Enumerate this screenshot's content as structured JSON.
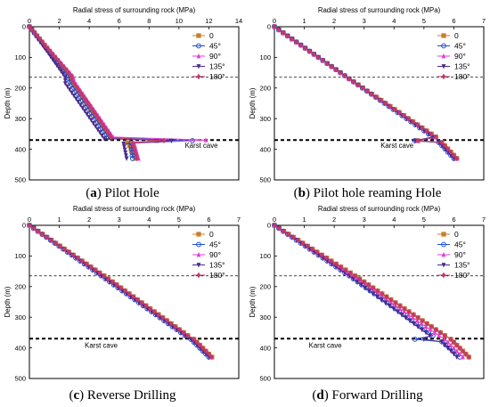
{
  "captions": [
    {
      "label": "a",
      "text": "Pilot Hole"
    },
    {
      "label": "b",
      "text": "Pilot hole reaming Hole"
    },
    {
      "label": "c",
      "text": "Reverse Drilling"
    },
    {
      "label": "d",
      "text": "Forward Drilling"
    }
  ],
  "series_styles": [
    {
      "name": "0",
      "color": "#c87f2a",
      "marker": "square"
    },
    {
      "name": "45°",
      "color": "#1f4fd6",
      "marker": "circle"
    },
    {
      "name": "90°",
      "color": "#e23fd6",
      "marker": "triangle-up"
    },
    {
      "name": "135°",
      "color": "#4a2b8c",
      "marker": "triangle-down"
    },
    {
      "name": "180°",
      "color": "#c13a6a",
      "marker": "diamond"
    }
  ],
  "chart_data": [
    {
      "id": "a",
      "type": "line",
      "xlabel": "Radial stress of surrounding rock (MPa)",
      "ylabel": "Depth (m)",
      "xlim": [
        0,
        14
      ],
      "xticks": [
        0,
        2,
        4,
        6,
        8,
        10,
        12,
        14
      ],
      "ylim": [
        0,
        500
      ],
      "yticks": [
        0,
        100,
        200,
        300,
        400,
        500
      ],
      "y_inverted": true,
      "x_axis_position": "top",
      "reference_lines": [
        {
          "depth": 165,
          "style": "thin-dashed"
        },
        {
          "depth": 370,
          "style": "thick-dashed"
        }
      ],
      "annotations": [
        {
          "text": "Karst cave",
          "x": 11.5,
          "y": 395
        }
      ],
      "series": [
        {
          "name": "0",
          "points": [
            [
              0,
              0
            ],
            [
              2.7,
              160
            ],
            [
              2.8,
              180
            ],
            [
              5.4,
              360
            ],
            [
              8.5,
              372
            ],
            [
              6.6,
              378
            ],
            [
              7.1,
              430
            ]
          ]
        },
        {
          "name": "45°",
          "points": [
            [
              0,
              0
            ],
            [
              2.6,
              160
            ],
            [
              2.7,
              180
            ],
            [
              5.3,
              362
            ],
            [
              10.9,
              372
            ],
            [
              6.8,
              380
            ],
            [
              6.9,
              430
            ]
          ]
        },
        {
          "name": "90°",
          "points": [
            [
              0,
              0
            ],
            [
              2.9,
              160
            ],
            [
              3.0,
              178
            ],
            [
              5.6,
              360
            ],
            [
              11.8,
              370
            ],
            [
              7.0,
              378
            ],
            [
              7.3,
              430
            ]
          ]
        },
        {
          "name": "135°",
          "points": [
            [
              0,
              0
            ],
            [
              2.4,
              165
            ],
            [
              2.4,
              185
            ],
            [
              5.0,
              365
            ],
            [
              9.5,
              372
            ],
            [
              6.3,
              382
            ],
            [
              6.5,
              430
            ]
          ]
        },
        {
          "name": "180°",
          "points": [
            [
              0,
              0
            ],
            [
              2.8,
              160
            ],
            [
              2.9,
              178
            ],
            [
              5.5,
              362
            ],
            [
              9.0,
              372
            ],
            [
              6.9,
              380
            ],
            [
              7.2,
              430
            ]
          ]
        }
      ]
    },
    {
      "id": "b",
      "type": "line",
      "xlabel": "Radial stress of surrounding rock (MPa)",
      "ylabel": "Depth (m)",
      "xlim": [
        0,
        7
      ],
      "xticks": [
        0,
        1,
        2,
        3,
        4,
        5,
        6,
        7
      ],
      "ylim": [
        0,
        500
      ],
      "yticks": [
        0,
        100,
        200,
        300,
        400,
        500
      ],
      "y_inverted": true,
      "x_axis_position": "top",
      "reference_lines": [
        {
          "depth": 165,
          "style": "thin-dashed"
        },
        {
          "depth": 370,
          "style": "thick-dashed"
        }
      ],
      "annotations": [
        {
          "text": "Karst cave",
          "x": 4.1,
          "y": 395
        }
      ],
      "series": [
        {
          "name": "0",
          "points": [
            [
              0,
              0
            ],
            [
              2.5,
              170
            ],
            [
              5.4,
              360
            ],
            [
              4.8,
              372
            ],
            [
              5.6,
              378
            ],
            [
              6.1,
              430
            ]
          ]
        },
        {
          "name": "45°",
          "points": [
            [
              0,
              0
            ],
            [
              2.5,
              170
            ],
            [
              5.3,
              360
            ],
            [
              4.7,
              372
            ],
            [
              5.5,
              378
            ],
            [
              6.0,
              430
            ]
          ]
        },
        {
          "name": "90°",
          "points": [
            [
              0,
              0
            ],
            [
              2.5,
              170
            ],
            [
              5.4,
              360
            ],
            [
              4.8,
              372
            ],
            [
              5.6,
              378
            ],
            [
              6.1,
              430
            ]
          ]
        },
        {
          "name": "135°",
          "points": [
            [
              0,
              0
            ],
            [
              2.5,
              170
            ],
            [
              5.3,
              360
            ],
            [
              4.7,
              372
            ],
            [
              5.5,
              378
            ],
            [
              6.0,
              430
            ]
          ]
        },
        {
          "name": "180°",
          "points": [
            [
              0,
              0
            ],
            [
              2.5,
              170
            ],
            [
              5.4,
              360
            ],
            [
              4.8,
              372
            ],
            [
              5.6,
              378
            ],
            [
              6.1,
              430
            ]
          ]
        }
      ]
    },
    {
      "id": "c",
      "type": "line",
      "xlabel": "Radial stress of surrounding rock (MPa)",
      "ylabel": "Depth (m)",
      "xlim": [
        0,
        7
      ],
      "xticks": [
        0,
        1,
        2,
        3,
        4,
        5,
        6,
        7
      ],
      "ylim": [
        0,
        500
      ],
      "yticks": [
        0,
        100,
        200,
        300,
        400,
        500
      ],
      "y_inverted": true,
      "x_axis_position": "top",
      "reference_lines": [
        {
          "depth": 165,
          "style": "thin-dashed"
        },
        {
          "depth": 370,
          "style": "thick-dashed"
        }
      ],
      "annotations": [
        {
          "text": "Karst cave",
          "x": 2.4,
          "y": 400
        }
      ],
      "series": [
        {
          "name": "0",
          "points": [
            [
              0,
              0
            ],
            [
              2.5,
              165
            ],
            [
              5.3,
              360
            ],
            [
              5.5,
              372
            ],
            [
              6.1,
              430
            ]
          ]
        },
        {
          "name": "45°",
          "points": [
            [
              0,
              0
            ],
            [
              2.4,
              165
            ],
            [
              5.2,
              360
            ],
            [
              5.4,
              372
            ],
            [
              6.0,
              430
            ]
          ]
        },
        {
          "name": "90°",
          "points": [
            [
              0,
              0
            ],
            [
              2.5,
              165
            ],
            [
              5.3,
              360
            ],
            [
              5.5,
              372
            ],
            [
              6.1,
              430
            ]
          ]
        },
        {
          "name": "135°",
          "points": [
            [
              0,
              0
            ],
            [
              2.4,
              165
            ],
            [
              5.2,
              360
            ],
            [
              5.4,
              372
            ],
            [
              6.0,
              430
            ]
          ]
        },
        {
          "name": "180°",
          "points": [
            [
              0,
              0
            ],
            [
              2.5,
              165
            ],
            [
              5.3,
              360
            ],
            [
              5.5,
              372
            ],
            [
              6.1,
              430
            ]
          ]
        }
      ]
    },
    {
      "id": "d",
      "type": "line",
      "xlabel": "Radial stress of surrounding rock (MPa)",
      "ylabel": "Depth (m)",
      "xlim": [
        0,
        7
      ],
      "xticks": [
        0,
        1,
        2,
        3,
        4,
        5,
        6,
        7
      ],
      "ylim": [
        0,
        500
      ],
      "yticks": [
        0,
        100,
        200,
        300,
        400,
        500
      ],
      "y_inverted": true,
      "x_axis_position": "top",
      "reference_lines": [
        {
          "depth": 165,
          "style": "thin-dashed"
        },
        {
          "depth": 370,
          "style": "thick-dashed"
        }
      ],
      "annotations": [
        {
          "text": "Karst cave",
          "x": 1.7,
          "y": 400
        }
      ],
      "series": [
        {
          "name": "0",
          "points": [
            [
              0,
              0
            ],
            [
              2.7,
              165
            ],
            [
              5.7,
              360
            ],
            [
              5.9,
              372
            ],
            [
              6.5,
              430
            ]
          ]
        },
        {
          "name": "45°",
          "points": [
            [
              0,
              0
            ],
            [
              2.5,
              165
            ],
            [
              5.3,
              360
            ],
            [
              4.7,
              372
            ],
            [
              5.6,
              380
            ],
            [
              6.2,
              430
            ]
          ]
        },
        {
          "name": "90°",
          "points": [
            [
              0,
              0
            ],
            [
              2.6,
              165
            ],
            [
              5.5,
              360
            ],
            [
              5.7,
              372
            ],
            [
              6.3,
              430
            ]
          ]
        },
        {
          "name": "135°",
          "points": [
            [
              0,
              0
            ],
            [
              2.5,
              165
            ],
            [
              5.2,
              360
            ],
            [
              5.0,
              372
            ],
            [
              5.6,
              380
            ],
            [
              6.1,
              430
            ]
          ]
        },
        {
          "name": "180°",
          "points": [
            [
              0,
              0
            ],
            [
              2.7,
              165
            ],
            [
              5.7,
              360
            ],
            [
              5.9,
              372
            ],
            [
              6.5,
              430
            ]
          ]
        }
      ]
    }
  ]
}
